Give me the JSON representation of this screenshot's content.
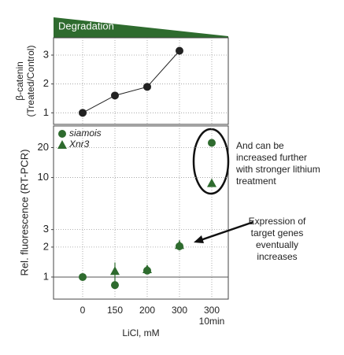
{
  "banner": "Degradation",
  "annotations": [
    {
      "lines": [
        "And can be",
        "increased further",
        "with stronger lithium",
        "treatment"
      ]
    },
    {
      "lines": [
        "Expression of",
        "target genes",
        "eventually",
        "increases"
      ]
    }
  ],
  "chart_data": [
    {
      "type": "line",
      "ylabel": [
        "β-catenin",
        "(Treated/Control)"
      ],
      "values": [
        1.0,
        1.6,
        1.9,
        3.15,
        null
      ],
      "color": "#222222",
      "ylim": [
        0.6,
        3.6
      ],
      "yticks": [
        1,
        2,
        3
      ],
      "grid": true
    },
    {
      "type": "scatter",
      "ylabel": "Rel. fluorescence (RT-PCR)",
      "xlabel": "LiCl, mM",
      "categories": [
        "0",
        "150",
        "200",
        "300",
        [
          "300",
          "10min"
        ]
      ],
      "log_scale": true,
      "grid": true,
      "legend": "upper left",
      "series": [
        {
          "name": "siamois",
          "marker": "circle",
          "color": "#2e6b2e",
          "values": [
            1.0,
            0.83,
            1.16,
            2.04,
            22.3
          ],
          "errors": [
            null,
            null,
            null,
            null,
            null
          ]
        },
        {
          "name": "Xnr3",
          "marker": "triangle",
          "color": "#2e6b2e",
          "values": [
            null,
            1.15,
            1.2,
            2.1,
            8.8
          ],
          "errors": [
            null,
            0.25,
            null,
            0.25,
            null
          ]
        }
      ],
      "ylim": [
        0.6,
        33
      ],
      "yticks": [
        1,
        2,
        3,
        10,
        20
      ]
    }
  ]
}
